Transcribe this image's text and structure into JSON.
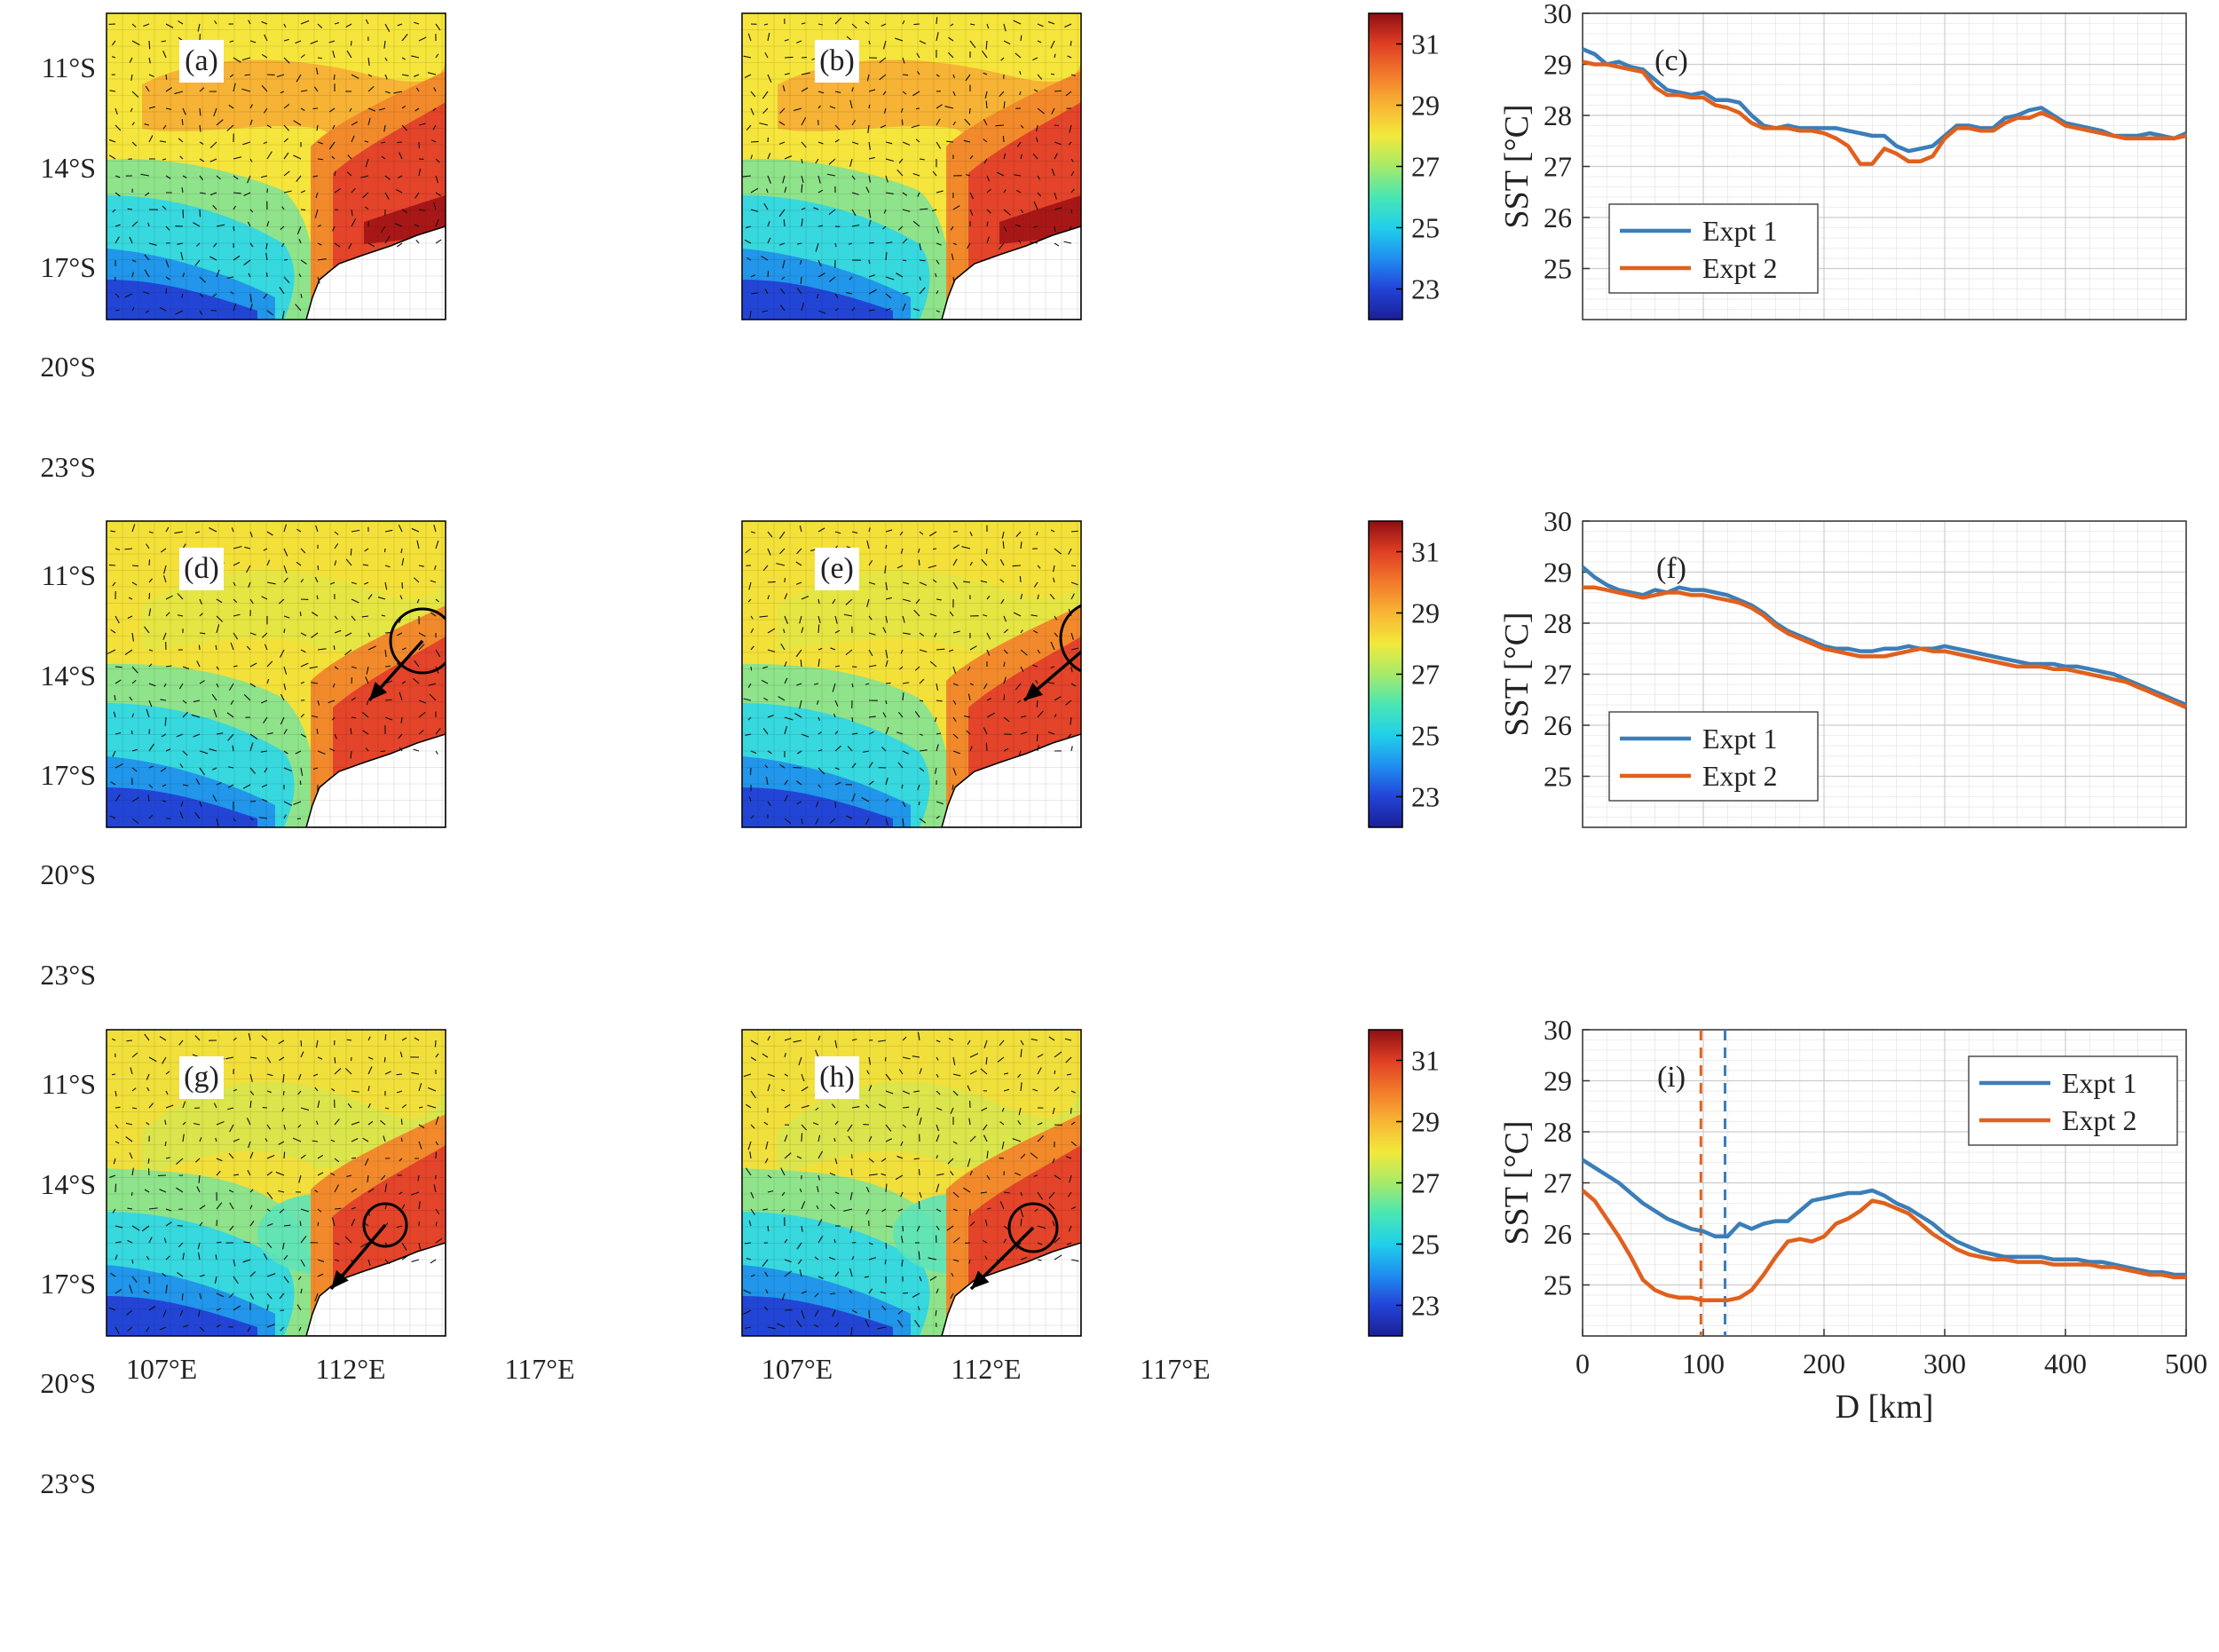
{
  "figure": {
    "colors": {
      "expt1": "#3b7eb8",
      "expt2": "#e0601d",
      "grid": "#c8c8c8",
      "axis": "#333333"
    },
    "colormap": [
      "#1a1f95",
      "#2343d8",
      "#1f8ef0",
      "#20d0ea",
      "#49e6b4",
      "#a6ea6a",
      "#f2e93b",
      "#f8b534",
      "#f27a2b",
      "#df3e24",
      "#8e0f12"
    ]
  },
  "maps": {
    "lat_ticks": [
      "11°S",
      "14°S",
      "17°S",
      "20°S",
      "23°S"
    ],
    "lon_ticks": [
      "107°E",
      "112°E",
      "117°E"
    ],
    "panels": [
      {
        "label": "(a)",
        "variant": "warm"
      },
      {
        "label": "(b)",
        "variant": "warm"
      },
      {
        "label": "(d)",
        "variant": "mid"
      },
      {
        "label": "(e)",
        "variant": "mid"
      },
      {
        "label": "(g)",
        "variant": "cool"
      },
      {
        "label": "(h)",
        "variant": "cool"
      }
    ]
  },
  "colorbars": [
    {
      "ticks": [
        "31",
        "29",
        "27",
        "25",
        "23"
      ],
      "range": [
        22,
        32
      ]
    },
    {
      "ticks": [
        "31",
        "29",
        "27",
        "25",
        "23"
      ],
      "range": [
        22,
        32
      ]
    },
    {
      "ticks": [
        "31",
        "29",
        "27",
        "25",
        "23"
      ],
      "range": [
        22,
        32
      ]
    }
  ],
  "chart_data": [
    {
      "type": "line",
      "panel": "(c)",
      "xlabel": "",
      "ylabel": "SST [°C]",
      "xlim": [
        0,
        500
      ],
      "ylim": [
        24,
        30
      ],
      "yticks": [
        "30",
        "29",
        "28",
        "27",
        "26",
        "25"
      ],
      "xticks": [],
      "legend_position": "bottom-left",
      "series": [
        {
          "name": "Expt 1",
          "x": [
            0,
            10,
            20,
            30,
            40,
            50,
            60,
            70,
            80,
            90,
            100,
            110,
            120,
            130,
            140,
            150,
            160,
            170,
            180,
            190,
            200,
            210,
            220,
            230,
            240,
            250,
            260,
            270,
            280,
            290,
            300,
            310,
            320,
            330,
            340,
            350,
            360,
            370,
            380,
            390,
            400,
            410,
            420,
            430,
            440,
            450,
            460,
            470,
            480,
            490,
            500
          ],
          "y": [
            29.3,
            29.2,
            29.0,
            29.05,
            28.95,
            28.9,
            28.7,
            28.5,
            28.45,
            28.4,
            28.45,
            28.3,
            28.3,
            28.25,
            28.0,
            27.8,
            27.75,
            27.8,
            27.75,
            27.75,
            27.75,
            27.75,
            27.7,
            27.65,
            27.6,
            27.6,
            27.4,
            27.3,
            27.35,
            27.4,
            27.6,
            27.8,
            27.8,
            27.75,
            27.75,
            27.95,
            28.0,
            28.1,
            28.15,
            28.0,
            27.85,
            27.8,
            27.75,
            27.7,
            27.6,
            27.6,
            27.6,
            27.65,
            27.6,
            27.55,
            27.65
          ]
        },
        {
          "name": "Expt 2",
          "x": [
            0,
            10,
            20,
            30,
            40,
            50,
            60,
            70,
            80,
            90,
            100,
            110,
            120,
            130,
            140,
            150,
            160,
            170,
            180,
            190,
            200,
            210,
            220,
            230,
            240,
            250,
            260,
            270,
            280,
            290,
            300,
            310,
            320,
            330,
            340,
            350,
            360,
            370,
            380,
            390,
            400,
            410,
            420,
            430,
            440,
            450,
            460,
            470,
            480,
            490,
            500
          ],
          "y": [
            29.05,
            29.0,
            29.0,
            28.95,
            28.9,
            28.85,
            28.55,
            28.4,
            28.4,
            28.35,
            28.35,
            28.2,
            28.15,
            28.05,
            27.85,
            27.75,
            27.75,
            27.75,
            27.7,
            27.7,
            27.65,
            27.55,
            27.4,
            27.05,
            27.05,
            27.35,
            27.25,
            27.1,
            27.1,
            27.2,
            27.55,
            27.75,
            27.75,
            27.7,
            27.7,
            27.85,
            27.95,
            27.95,
            28.05,
            27.95,
            27.8,
            27.75,
            27.7,
            27.65,
            27.6,
            27.55,
            27.55,
            27.55,
            27.55,
            27.55,
            27.6
          ]
        }
      ]
    },
    {
      "type": "line",
      "panel": "(f)",
      "xlabel": "",
      "ylabel": "SST [°C]",
      "xlim": [
        0,
        500
      ],
      "ylim": [
        24,
        30
      ],
      "yticks": [
        "30",
        "29",
        "28",
        "27",
        "26",
        "25"
      ],
      "xticks": [],
      "legend_position": "bottom-left",
      "series": [
        {
          "name": "Expt 1",
          "x": [
            0,
            10,
            20,
            30,
            40,
            50,
            60,
            70,
            80,
            90,
            100,
            110,
            120,
            130,
            140,
            150,
            160,
            170,
            180,
            190,
            200,
            210,
            220,
            230,
            240,
            250,
            260,
            270,
            280,
            290,
            300,
            310,
            320,
            330,
            340,
            350,
            360,
            370,
            380,
            390,
            400,
            410,
            420,
            430,
            440,
            450,
            460,
            470,
            480,
            490,
            500
          ],
          "y": [
            29.1,
            28.9,
            28.75,
            28.65,
            28.6,
            28.55,
            28.65,
            28.6,
            28.7,
            28.65,
            28.65,
            28.6,
            28.55,
            28.45,
            28.35,
            28.2,
            28.0,
            27.85,
            27.75,
            27.65,
            27.55,
            27.5,
            27.5,
            27.45,
            27.45,
            27.5,
            27.5,
            27.55,
            27.5,
            27.5,
            27.55,
            27.5,
            27.45,
            27.4,
            27.35,
            27.3,
            27.25,
            27.2,
            27.2,
            27.2,
            27.15,
            27.15,
            27.1,
            27.05,
            27.0,
            26.9,
            26.8,
            26.7,
            26.6,
            26.5,
            26.4
          ]
        },
        {
          "name": "Expt 2",
          "x": [
            0,
            10,
            20,
            30,
            40,
            50,
            60,
            70,
            80,
            90,
            100,
            110,
            120,
            130,
            140,
            150,
            160,
            170,
            180,
            190,
            200,
            210,
            220,
            230,
            240,
            250,
            260,
            270,
            280,
            290,
            300,
            310,
            320,
            330,
            340,
            350,
            360,
            370,
            380,
            390,
            400,
            410,
            420,
            430,
            440,
            450,
            460,
            470,
            480,
            490,
            500
          ],
          "y": [
            28.7,
            28.7,
            28.65,
            28.6,
            28.55,
            28.5,
            28.55,
            28.6,
            28.6,
            28.55,
            28.55,
            28.5,
            28.45,
            28.4,
            28.3,
            28.15,
            27.95,
            27.8,
            27.7,
            27.6,
            27.5,
            27.45,
            27.4,
            27.35,
            27.35,
            27.35,
            27.4,
            27.45,
            27.5,
            27.45,
            27.45,
            27.4,
            27.35,
            27.3,
            27.25,
            27.2,
            27.15,
            27.15,
            27.15,
            27.1,
            27.1,
            27.05,
            27.0,
            26.95,
            26.9,
            26.85,
            26.75,
            26.65,
            26.55,
            26.45,
            26.35
          ]
        }
      ]
    },
    {
      "type": "line",
      "panel": "(i)",
      "xlabel": "D [km]",
      "ylabel": "SST [°C]",
      "xlim": [
        0,
        500
      ],
      "ylim": [
        24,
        30
      ],
      "yticks": [
        "30",
        "29",
        "28",
        "27",
        "26",
        "25"
      ],
      "xticks": [
        "0",
        "100",
        "200",
        "300",
        "400",
        "500"
      ],
      "legend_position": "top-right",
      "vlines": [
        {
          "x": 98,
          "series": "Expt 2"
        },
        {
          "x": 118,
          "series": "Expt 1"
        }
      ],
      "series": [
        {
          "name": "Expt 1",
          "x": [
            0,
            10,
            20,
            30,
            40,
            50,
            60,
            70,
            80,
            90,
            100,
            110,
            120,
            130,
            140,
            150,
            160,
            170,
            180,
            190,
            200,
            210,
            220,
            230,
            240,
            250,
            260,
            270,
            280,
            290,
            300,
            310,
            320,
            330,
            340,
            350,
            360,
            370,
            380,
            390,
            400,
            410,
            420,
            430,
            440,
            450,
            460,
            470,
            480,
            490,
            500
          ],
          "y": [
            27.45,
            27.3,
            27.15,
            27.0,
            26.8,
            26.6,
            26.45,
            26.3,
            26.2,
            26.1,
            26.05,
            25.95,
            25.95,
            26.2,
            26.1,
            26.2,
            26.25,
            26.25,
            26.45,
            26.65,
            26.7,
            26.75,
            26.8,
            26.8,
            26.85,
            26.75,
            26.6,
            26.5,
            26.35,
            26.2,
            26.0,
            25.85,
            25.75,
            25.65,
            25.6,
            25.55,
            25.55,
            25.55,
            25.55,
            25.5,
            25.5,
            25.5,
            25.45,
            25.45,
            25.4,
            25.35,
            25.3,
            25.25,
            25.25,
            25.2,
            25.2
          ]
        },
        {
          "name": "Expt 2",
          "x": [
            0,
            10,
            20,
            30,
            40,
            50,
            60,
            70,
            80,
            90,
            100,
            110,
            120,
            130,
            140,
            150,
            160,
            170,
            180,
            190,
            200,
            210,
            220,
            230,
            240,
            250,
            260,
            270,
            280,
            290,
            300,
            310,
            320,
            330,
            340,
            350,
            360,
            370,
            380,
            390,
            400,
            410,
            420,
            430,
            440,
            450,
            460,
            470,
            480,
            490,
            500
          ],
          "y": [
            26.85,
            26.65,
            26.3,
            25.95,
            25.55,
            25.1,
            24.9,
            24.8,
            24.75,
            24.75,
            24.7,
            24.7,
            24.7,
            24.75,
            24.9,
            25.2,
            25.55,
            25.85,
            25.9,
            25.85,
            25.95,
            26.2,
            26.3,
            26.45,
            26.65,
            26.6,
            26.5,
            26.4,
            26.2,
            26.0,
            25.85,
            25.7,
            25.6,
            25.55,
            25.5,
            25.5,
            25.45,
            25.45,
            25.45,
            25.4,
            25.4,
            25.4,
            25.4,
            25.35,
            25.35,
            25.3,
            25.25,
            25.2,
            25.2,
            25.15,
            25.15
          ]
        }
      ]
    }
  ]
}
